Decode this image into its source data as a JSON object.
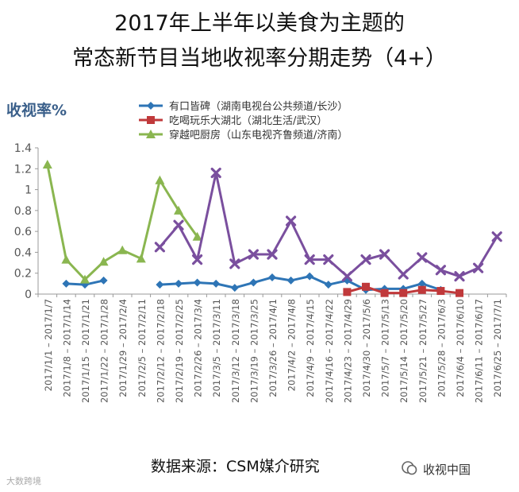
{
  "page": {
    "title_line1": "2017年上半年以美食为主题的",
    "title_line2": "常态新节目当地收视率分期走势（4+）",
    "source": "数据来源：CSM媒介研究",
    "watermark": "大数跨境",
    "brand": "收视中国"
  },
  "chart_data": {
    "type": "line",
    "ylabel": "收视率%",
    "ylim": [
      0,
      1.4
    ],
    "yticks": [
      "0",
      "0.2",
      "0.4",
      "0.6",
      "0.8",
      "1",
      "1.2",
      "1.4"
    ],
    "grid": false,
    "legend_position": "top",
    "categories": [
      "2017/1/1 – 2017/1/7",
      "2017/1/8 – 2017/1/14",
      "2017/1/15 – 2017/1/21",
      "2017/1/22 – 2017/1/28",
      "2017/1/29 – 2017/2/4",
      "2017/2/5 – 2017/2/11",
      "2017/2/12 – 2017/2/18",
      "2017/2/19 – 2017/2/25",
      "2017/2/26 – 2017/3/4",
      "2017/3/5 – 2017/3/11",
      "2017/3/12 – 2017/3/18",
      "2017/3/19 – 2017/3/25",
      "2017/3/26 – 2017/4/1",
      "2017/4/2 – 2017/4/8",
      "2017/4/9 – 2017/4/15",
      "2017/4/16 – 2017/4/22",
      "2017/4/23 – 2017/4/29",
      "2017/4/30 – 2017/5/6",
      "2017/5/7 – 2017/5/13",
      "2017/5/14 – 2017/5/20",
      "2017/5/21 – 2017/5/27",
      "2017/5/28 – 2017/6/3",
      "2017/6/4 – 2017/6/10",
      "2017/6/11 – 2017/6/17",
      "2017/6/25 – 2017/7/1"
    ],
    "series": [
      {
        "name": "有口皆碑（湖南电视台公共频道/长沙）",
        "color": "#2e75b6",
        "marker": "diamond",
        "values": [
          null,
          0.1,
          0.09,
          0.13,
          null,
          null,
          0.09,
          0.1,
          0.11,
          0.1,
          0.06,
          0.11,
          0.16,
          0.13,
          0.17,
          0.09,
          0.13,
          0.04,
          0.05,
          0.05,
          0.1,
          0.04,
          null,
          null,
          null
        ]
      },
      {
        "name": "吃喝玩乐大湖北（湖北生活/武汉）",
        "color": "#c0393b",
        "marker": "square",
        "values": [
          null,
          null,
          null,
          null,
          null,
          null,
          null,
          null,
          null,
          null,
          null,
          null,
          null,
          null,
          null,
          null,
          0.02,
          0.07,
          0.01,
          0.01,
          0.04,
          0.03,
          0.01,
          null,
          null
        ]
      },
      {
        "name": "穿越吧厨房（山东电视齐鲁频道/济南）",
        "color": "#8ab650",
        "marker": "triangle",
        "values": [
          1.24,
          0.33,
          0.14,
          0.31,
          0.42,
          0.34,
          1.09,
          0.8,
          0.55,
          null,
          null,
          null,
          null,
          null,
          null,
          null,
          null,
          null,
          null,
          null,
          null,
          null,
          null,
          null,
          null
        ]
      },
      {
        "color": "#7a4f9e",
        "marker": "x",
        "values": [
          null,
          null,
          null,
          null,
          null,
          null,
          0.45,
          0.66,
          0.33,
          1.16,
          0.29,
          0.38,
          0.38,
          0.7,
          0.33,
          0.33,
          0.17,
          0.33,
          0.38,
          0.19,
          0.35,
          0.23,
          0.17,
          0.25,
          0.55
        ]
      }
    ]
  }
}
